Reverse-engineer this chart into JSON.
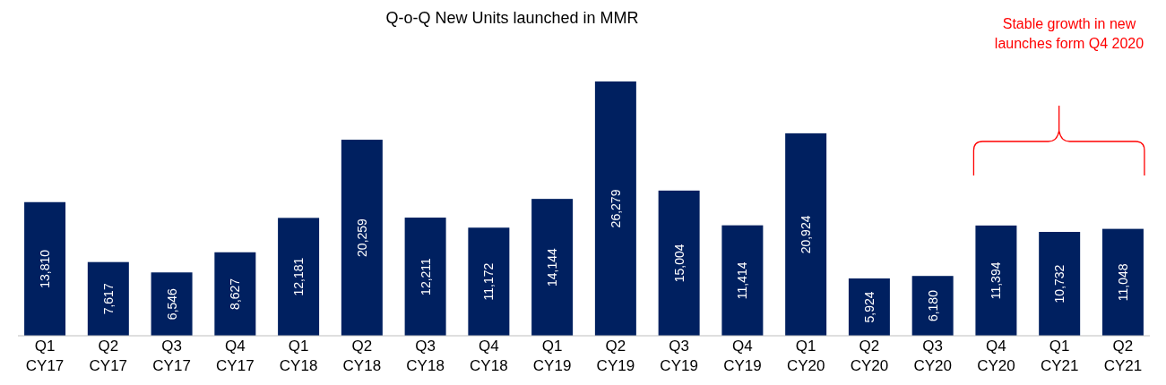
{
  "chart_data": {
    "type": "bar",
    "title": "Q-o-Q New Units launched in MMR",
    "categories": [
      "Q1 CY17",
      "Q2 CY17",
      "Q3 CY17",
      "Q4 CY17",
      "Q1 CY18",
      "Q2 CY18",
      "Q3 CY18",
      "Q4 CY18",
      "Q1 CY19",
      "Q2 CY19",
      "Q3 CY19",
      "Q4 CY19",
      "Q1 CY20",
      "Q2 CY20",
      "Q3 CY20",
      "Q4 CY20",
      "Q1 CY21",
      "Q2 CY21"
    ],
    "values": [
      13810,
      7617,
      6546,
      8627,
      12181,
      20259,
      12211,
      11172,
      14144,
      26279,
      15004,
      11414,
      20924,
      5924,
      6180,
      11394,
      10732,
      11048
    ],
    "value_labels": [
      "13,810",
      "7,617",
      "6,546",
      "8,627",
      "12,181",
      "20,259",
      "12,211",
      "11,172",
      "14,144",
      "26,279",
      "15,004",
      "11,414",
      "20,924",
      "5,924",
      "6,180",
      "11,394",
      "10,732",
      "11,048"
    ],
    "color": "#002060",
    "annotations": [
      "Stable growth in new launches form Q4 2020"
    ]
  }
}
